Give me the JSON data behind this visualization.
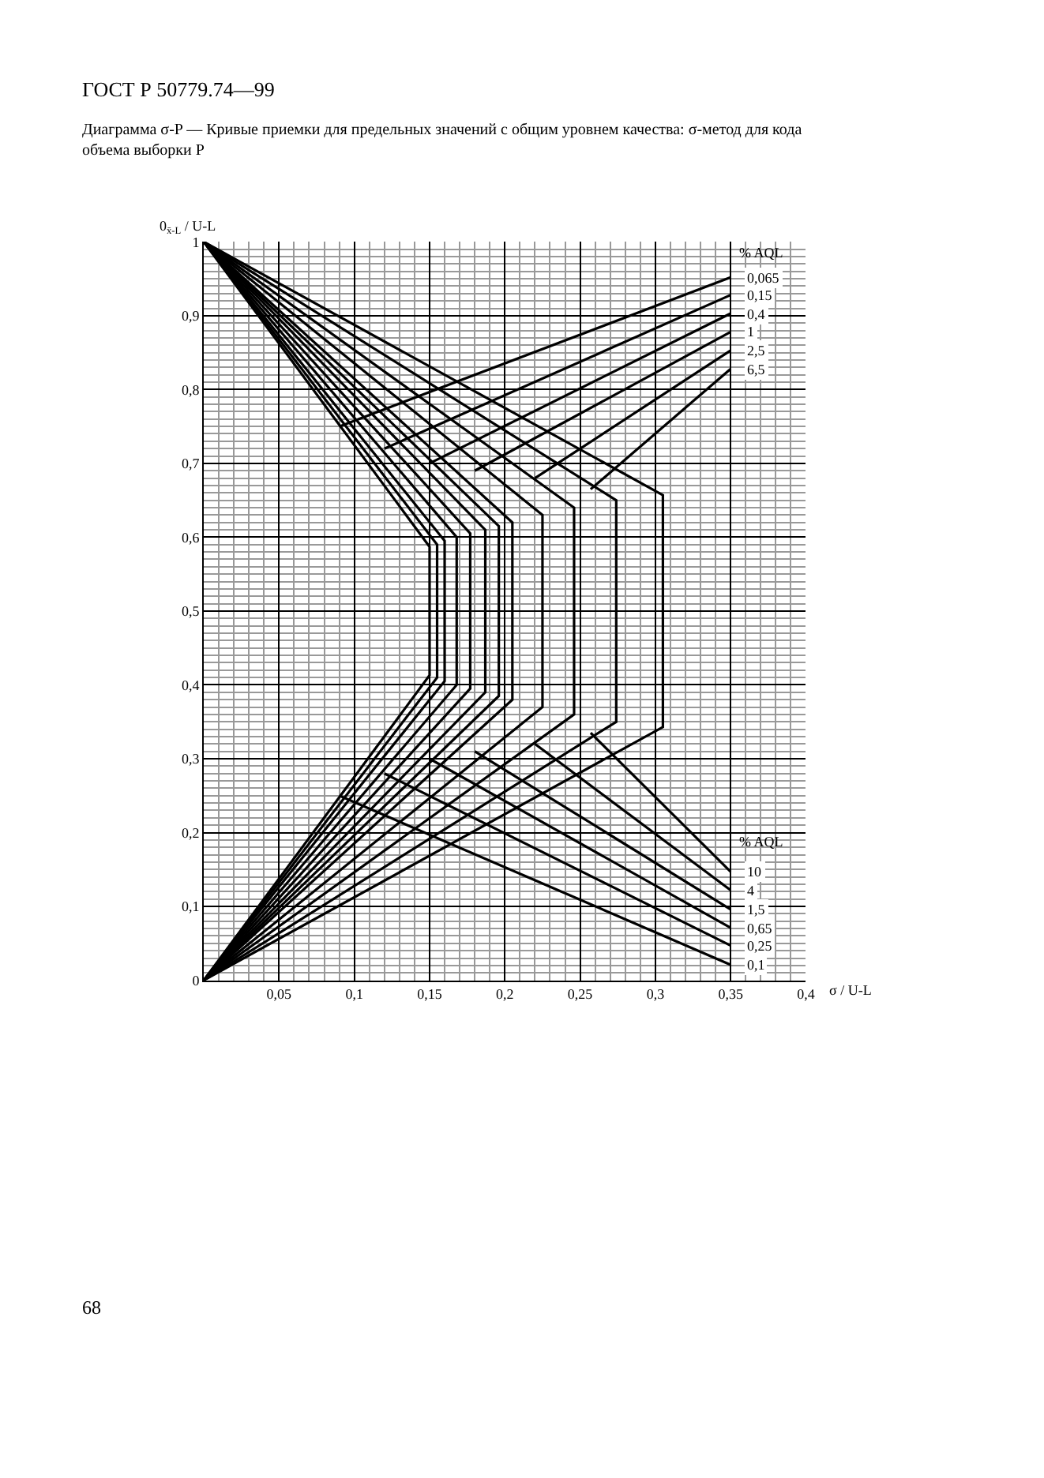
{
  "chart_data": {
    "type": "line",
    "title": "Диаграмма σ-P — Кривые приемки для предельных значений с общим уровнем качества: σ-метод для кода объема выборки P",
    "xlabel": "σ / U-L",
    "ylabel": "0$_{x̄-L}$ / U-L",
    "annotations": [
      "ГОСТ Р 50779.74—99",
      "% AQL",
      "% AQL",
      "68"
    ],
    "xlim": [
      0,
      0.4
    ],
    "ylim": [
      0,
      1
    ],
    "xticks": [
      {
        "value": 0.05,
        "label": "0,05"
      },
      {
        "value": 0.1,
        "label": "0,1"
      },
      {
        "value": 0.15,
        "label": "0,15"
      },
      {
        "value": 0.2,
        "label": "0,2"
      },
      {
        "value": 0.25,
        "label": "0,25"
      },
      {
        "value": 0.3,
        "label": "0,3"
      },
      {
        "value": 0.35,
        "label": "0,35"
      },
      {
        "value": 0.4,
        "label": "0,4"
      }
    ],
    "yticks": [
      0,
      {
        "value": 0.1,
        "label": "0,1"
      },
      {
        "value": 0.2,
        "label": "0,2"
      },
      {
        "value": 0.3,
        "label": "0,3"
      },
      {
        "value": 0.4,
        "label": "0,4"
      },
      {
        "value": 0.5,
        "label": "0,5"
      },
      {
        "value": 0.6,
        "label": "0,6"
      },
      {
        "value": 0.7,
        "label": "0,7"
      },
      {
        "value": 0.8,
        "label": "0,8"
      },
      {
        "value": 0.9,
        "label": "0,9"
      },
      1
    ],
    "grid": true,
    "marker": "none",
    "line_style": "solid",
    "series": [
      {
        "color": "#000000",
        "x": [
          0,
          0.15,
          0.15,
          0
        ],
        "values": [
          1,
          0.587,
          0.413,
          0
        ]
      },
      {
        "color": "#000000",
        "x": [
          0,
          0.155,
          0.155,
          0
        ],
        "values": [
          1,
          0.59,
          0.41,
          0
        ]
      },
      {
        "color": "#000000",
        "x": [
          0,
          0.16,
          0.16,
          0
        ],
        "values": [
          1,
          0.595,
          0.405,
          0
        ]
      },
      {
        "color": "#000000",
        "x": [
          0,
          0.168,
          0.168,
          0
        ],
        "values": [
          1,
          0.6,
          0.4,
          0
        ]
      },
      {
        "color": "#000000",
        "x": [
          0,
          0.177,
          0.177,
          0
        ],
        "values": [
          1,
          0.605,
          0.395,
          0
        ]
      },
      {
        "color": "#000000",
        "x": [
          0,
          0.187,
          0.187,
          0
        ],
        "values": [
          1,
          0.61,
          0.39,
          0
        ]
      },
      {
        "color": "#000000",
        "x": [
          0,
          0.196,
          0.196,
          0
        ],
        "values": [
          1,
          0.615,
          0.385,
          0
        ]
      },
      {
        "color": "#000000",
        "x": [
          0,
          0.205,
          0.205,
          0
        ],
        "values": [
          1,
          0.62,
          0.38,
          0
        ]
      },
      {
        "color": "#000000",
        "x": [
          0,
          0.225,
          0.225,
          0
        ],
        "values": [
          1,
          0.63,
          0.37,
          0
        ]
      },
      {
        "color": "#000000",
        "x": [
          0,
          0.246,
          0.246,
          0
        ],
        "values": [
          1,
          0.64,
          0.36,
          0
        ]
      },
      {
        "color": "#000000",
        "x": [
          0,
          0.274,
          0.274,
          0
        ],
        "values": [
          1,
          0.65,
          0.35,
          0
        ]
      },
      {
        "color": "#000000",
        "x": [
          0,
          0.305,
          0.305,
          0
        ],
        "values": [
          1,
          0.657,
          0.343,
          0
        ]
      },
      {
        "name": "0,065",
        "color": "#000000",
        "x": [
          0.09,
          0.35
        ],
        "values": [
          0.75,
          0.952
        ]
      },
      {
        "name": "0,15",
        "color": "#000000",
        "x": [
          0.12,
          0.35
        ],
        "values": [
          0.72,
          0.928
        ]
      },
      {
        "name": "0,4",
        "color": "#000000",
        "x": [
          0.15,
          0.35
        ],
        "values": [
          0.7,
          0.903
        ]
      },
      {
        "name": "1",
        "color": "#000000",
        "x": [
          0.18,
          0.35
        ],
        "values": [
          0.69,
          0.878
        ]
      },
      {
        "name": "2,5",
        "color": "#000000",
        "x": [
          0.22,
          0.35
        ],
        "values": [
          0.68,
          0.853
        ]
      },
      {
        "name": "6,5",
        "color": "#000000",
        "x": [
          0.257,
          0.35
        ],
        "values": [
          0.665,
          0.828
        ]
      },
      {
        "name": "10",
        "color": "#000000",
        "x": [
          0.257,
          0.35
        ],
        "values": [
          0.335,
          0.147
        ]
      },
      {
        "name": "4",
        "color": "#000000",
        "x": [
          0.22,
          0.35
        ],
        "values": [
          0.32,
          0.122
        ]
      },
      {
        "name": "1,5",
        "color": "#000000",
        "x": [
          0.18,
          0.35
        ],
        "values": [
          0.31,
          0.096
        ]
      },
      {
        "name": "0,65",
        "color": "#000000",
        "x": [
          0.15,
          0.35
        ],
        "values": [
          0.3,
          0.071
        ]
      },
      {
        "name": "0,25",
        "color": "#000000",
        "x": [
          0.12,
          0.35
        ],
        "values": [
          0.28,
          0.047
        ]
      },
      {
        "name": "0,1",
        "color": "#000000",
        "x": [
          0.09,
          0.35
        ],
        "values": [
          0.25,
          0.021
        ]
      }
    ]
  }
}
